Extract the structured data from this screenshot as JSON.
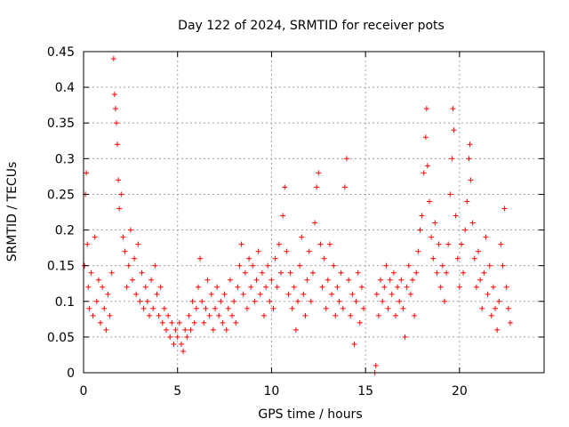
{
  "chart_data": {
    "type": "scatter",
    "title": "Day 122 of 2024, SRMTID for receiver pots",
    "xlabel": "GPS time / hours",
    "ylabel": "SRMTID / TECUs",
    "xlim": [
      0,
      24.5
    ],
    "ylim": [
      0,
      0.45
    ],
    "xticks": [
      0,
      5,
      10,
      15,
      20
    ],
    "xtick_labels": [
      "0",
      "5",
      "10",
      "15",
      "20"
    ],
    "yticks": [
      0,
      0.05,
      0.1,
      0.15,
      0.2,
      0.25,
      0.3,
      0.35,
      0.4,
      0.45
    ],
    "ytick_labels": [
      "0",
      "0.05",
      "0.1",
      "0.15",
      "0.2",
      "0.25",
      "0.3",
      "0.35",
      "0.4",
      "0.45"
    ],
    "grid": true,
    "marker": "plus",
    "color": "#ff0000",
    "data_gaps_hours": [
      [
        15.0,
        15.5
      ],
      [
        22.8,
        24.5
      ]
    ],
    "series": [
      {
        "name": "pots",
        "points": [
          [
            0.05,
            0.15
          ],
          [
            0.1,
            0.25
          ],
          [
            0.15,
            0.28
          ],
          [
            0.2,
            0.18
          ],
          [
            0.25,
            0.12
          ],
          [
            0.3,
            0.09
          ],
          [
            0.4,
            0.14
          ],
          [
            0.5,
            0.08
          ],
          [
            0.6,
            0.19
          ],
          [
            0.7,
            0.1
          ],
          [
            0.8,
            0.13
          ],
          [
            0.9,
            0.07
          ],
          [
            1.0,
            0.12
          ],
          [
            1.1,
            0.09
          ],
          [
            1.2,
            0.06
          ],
          [
            1.3,
            0.11
          ],
          [
            1.4,
            0.08
          ],
          [
            1.5,
            0.14
          ],
          [
            1.6,
            0.44
          ],
          [
            1.65,
            0.39
          ],
          [
            1.7,
            0.37
          ],
          [
            1.75,
            0.35
          ],
          [
            1.8,
            0.32
          ],
          [
            1.85,
            0.27
          ],
          [
            1.9,
            0.23
          ],
          [
            2.0,
            0.25
          ],
          [
            2.1,
            0.19
          ],
          [
            2.2,
            0.17
          ],
          [
            2.3,
            0.12
          ],
          [
            2.4,
            0.15
          ],
          [
            2.5,
            0.2
          ],
          [
            2.6,
            0.13
          ],
          [
            2.7,
            0.16
          ],
          [
            2.8,
            0.11
          ],
          [
            2.9,
            0.18
          ],
          [
            3.0,
            0.1
          ],
          [
            3.1,
            0.14
          ],
          [
            3.2,
            0.09
          ],
          [
            3.3,
            0.12
          ],
          [
            3.4,
            0.1
          ],
          [
            3.5,
            0.08
          ],
          [
            3.6,
            0.13
          ],
          [
            3.7,
            0.09
          ],
          [
            3.8,
            0.15
          ],
          [
            3.9,
            0.11
          ],
          [
            4.0,
            0.08
          ],
          [
            4.1,
            0.12
          ],
          [
            4.2,
            0.07
          ],
          [
            4.3,
            0.09
          ],
          [
            4.4,
            0.06
          ],
          [
            4.5,
            0.08
          ],
          [
            4.6,
            0.05
          ],
          [
            4.7,
            0.07
          ],
          [
            4.8,
            0.04
          ],
          [
            4.9,
            0.06
          ],
          [
            5.0,
            0.05
          ],
          [
            5.1,
            0.07
          ],
          [
            5.2,
            0.04
          ],
          [
            5.3,
            0.03
          ],
          [
            5.4,
            0.06
          ],
          [
            5.5,
            0.05
          ],
          [
            5.6,
            0.08
          ],
          [
            5.7,
            0.06
          ],
          [
            5.8,
            0.1
          ],
          [
            5.9,
            0.07
          ],
          [
            6.0,
            0.09
          ],
          [
            6.1,
            0.12
          ],
          [
            6.2,
            0.16
          ],
          [
            6.3,
            0.1
          ],
          [
            6.4,
            0.07
          ],
          [
            6.5,
            0.09
          ],
          [
            6.6,
            0.13
          ],
          [
            6.7,
            0.08
          ],
          [
            6.8,
            0.11
          ],
          [
            6.9,
            0.06
          ],
          [
            7.0,
            0.09
          ],
          [
            7.1,
            0.12
          ],
          [
            7.2,
            0.08
          ],
          [
            7.3,
            0.1
          ],
          [
            7.4,
            0.07
          ],
          [
            7.5,
            0.11
          ],
          [
            7.6,
            0.06
          ],
          [
            7.7,
            0.09
          ],
          [
            7.8,
            0.13
          ],
          [
            7.9,
            0.08
          ],
          [
            8.0,
            0.1
          ],
          [
            8.1,
            0.07
          ],
          [
            8.2,
            0.12
          ],
          [
            8.3,
            0.15
          ],
          [
            8.4,
            0.18
          ],
          [
            8.5,
            0.11
          ],
          [
            8.6,
            0.14
          ],
          [
            8.7,
            0.09
          ],
          [
            8.8,
            0.16
          ],
          [
            8.9,
            0.12
          ],
          [
            9.0,
            0.15
          ],
          [
            9.1,
            0.1
          ],
          [
            9.2,
            0.13
          ],
          [
            9.3,
            0.17
          ],
          [
            9.4,
            0.11
          ],
          [
            9.5,
            0.14
          ],
          [
            9.6,
            0.08
          ],
          [
            9.7,
            0.12
          ],
          [
            9.8,
            0.15
          ],
          [
            9.9,
            0.1
          ],
          [
            10.0,
            0.13
          ],
          [
            10.1,
            0.09
          ],
          [
            10.2,
            0.16
          ],
          [
            10.3,
            0.12
          ],
          [
            10.4,
            0.18
          ],
          [
            10.5,
            0.14
          ],
          [
            10.6,
            0.22
          ],
          [
            10.7,
            0.26
          ],
          [
            10.8,
            0.17
          ],
          [
            10.9,
            0.11
          ],
          [
            11.0,
            0.14
          ],
          [
            11.1,
            0.09
          ],
          [
            11.2,
            0.12
          ],
          [
            11.3,
            0.06
          ],
          [
            11.4,
            0.1
          ],
          [
            11.5,
            0.15
          ],
          [
            11.6,
            0.19
          ],
          [
            11.7,
            0.11
          ],
          [
            11.8,
            0.08
          ],
          [
            11.9,
            0.13
          ],
          [
            12.0,
            0.17
          ],
          [
            12.1,
            0.1
          ],
          [
            12.2,
            0.14
          ],
          [
            12.3,
            0.21
          ],
          [
            12.4,
            0.26
          ],
          [
            12.5,
            0.28
          ],
          [
            12.6,
            0.18
          ],
          [
            12.7,
            0.12
          ],
          [
            12.8,
            0.16
          ],
          [
            12.9,
            0.09
          ],
          [
            13.0,
            0.13
          ],
          [
            13.1,
            0.18
          ],
          [
            13.2,
            0.11
          ],
          [
            13.3,
            0.15
          ],
          [
            13.4,
            0.08
          ],
          [
            13.5,
            0.12
          ],
          [
            13.6,
            0.1
          ],
          [
            13.7,
            0.14
          ],
          [
            13.8,
            0.09
          ],
          [
            13.9,
            0.26
          ],
          [
            14.0,
            0.3
          ],
          [
            14.1,
            0.13
          ],
          [
            14.2,
            0.08
          ],
          [
            14.3,
            0.11
          ],
          [
            14.4,
            0.04
          ],
          [
            14.5,
            0.1
          ],
          [
            14.6,
            0.14
          ],
          [
            14.7,
            0.07
          ],
          [
            14.8,
            0.12
          ],
          [
            14.9,
            0.09
          ],
          [
            15.5,
            0.0
          ],
          [
            15.55,
            0.01
          ],
          [
            15.6,
            0.11
          ],
          [
            15.7,
            0.08
          ],
          [
            15.8,
            0.13
          ],
          [
            15.9,
            0.1
          ],
          [
            16.0,
            0.12
          ],
          [
            16.1,
            0.15
          ],
          [
            16.2,
            0.09
          ],
          [
            16.3,
            0.13
          ],
          [
            16.4,
            0.11
          ],
          [
            16.5,
            0.14
          ],
          [
            16.6,
            0.08
          ],
          [
            16.7,
            0.12
          ],
          [
            16.8,
            0.1
          ],
          [
            16.9,
            0.13
          ],
          [
            17.0,
            0.09
          ],
          [
            17.1,
            0.05
          ],
          [
            17.2,
            0.12
          ],
          [
            17.3,
            0.15
          ],
          [
            17.4,
            0.11
          ],
          [
            17.5,
            0.13
          ],
          [
            17.6,
            0.08
          ],
          [
            17.7,
            0.14
          ],
          [
            17.8,
            0.17
          ],
          [
            17.9,
            0.2
          ],
          [
            18.0,
            0.22
          ],
          [
            18.1,
            0.28
          ],
          [
            18.2,
            0.33
          ],
          [
            18.25,
            0.37
          ],
          [
            18.3,
            0.29
          ],
          [
            18.4,
            0.24
          ],
          [
            18.5,
            0.19
          ],
          [
            18.6,
            0.16
          ],
          [
            18.7,
            0.21
          ],
          [
            18.8,
            0.14
          ],
          [
            18.9,
            0.18
          ],
          [
            19.0,
            0.12
          ],
          [
            19.1,
            0.15
          ],
          [
            19.2,
            0.1
          ],
          [
            19.3,
            0.14
          ],
          [
            19.4,
            0.18
          ],
          [
            19.5,
            0.25
          ],
          [
            19.6,
            0.3
          ],
          [
            19.65,
            0.37
          ],
          [
            19.7,
            0.34
          ],
          [
            19.8,
            0.22
          ],
          [
            19.9,
            0.16
          ],
          [
            20.0,
            0.12
          ],
          [
            20.1,
            0.18
          ],
          [
            20.2,
            0.14
          ],
          [
            20.3,
            0.2
          ],
          [
            20.4,
            0.24
          ],
          [
            20.5,
            0.3
          ],
          [
            20.55,
            0.32
          ],
          [
            20.6,
            0.27
          ],
          [
            20.7,
            0.21
          ],
          [
            20.8,
            0.16
          ],
          [
            20.9,
            0.12
          ],
          [
            21.0,
            0.17
          ],
          [
            21.1,
            0.13
          ],
          [
            21.2,
            0.09
          ],
          [
            21.3,
            0.14
          ],
          [
            21.4,
            0.19
          ],
          [
            21.5,
            0.11
          ],
          [
            21.6,
            0.15
          ],
          [
            21.7,
            0.08
          ],
          [
            21.8,
            0.12
          ],
          [
            21.9,
            0.09
          ],
          [
            22.0,
            0.06
          ],
          [
            22.1,
            0.1
          ],
          [
            22.2,
            0.18
          ],
          [
            22.3,
            0.15
          ],
          [
            22.4,
            0.23
          ],
          [
            22.5,
            0.12
          ],
          [
            22.6,
            0.09
          ],
          [
            22.7,
            0.07
          ]
        ]
      }
    ]
  }
}
